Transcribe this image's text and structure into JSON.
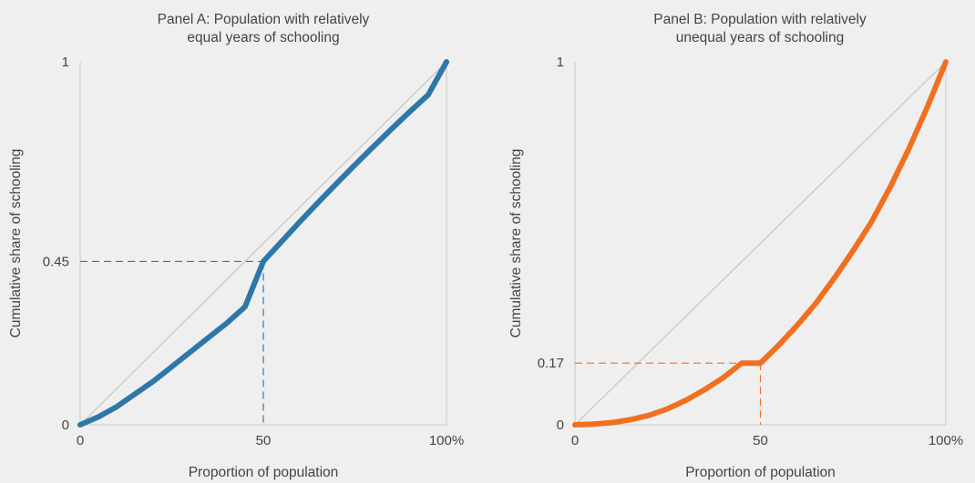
{
  "colors": {
    "background": "#efefef",
    "axis": "#c8c8c8",
    "equality_line": "#bdbdbd",
    "text": "#444444",
    "panel_a_series": "#2e78a8",
    "panel_b_series": "#f07020"
  },
  "chart_data": [
    {
      "type": "line",
      "title": [
        "Panel A: Population with relatively",
        "equal years of schooling"
      ],
      "xlabel": "Proportion of population",
      "ylabel": "Cumulative share of schooling",
      "xlim": [
        0,
        100
      ],
      "ylim": [
        0,
        1
      ],
      "xticks": [
        {
          "value": 0,
          "label": "0"
        },
        {
          "value": 50,
          "label": "50"
        },
        {
          "value": 100,
          "label": "100%"
        }
      ],
      "yticks": [
        {
          "value": 0,
          "label": "0"
        },
        {
          "value": 0.45,
          "label": "0.45"
        },
        {
          "value": 1,
          "label": "1"
        }
      ],
      "grid": false,
      "equality_line": {
        "x": [
          0,
          100
        ],
        "y": [
          0,
          1
        ]
      },
      "series": [
        {
          "color": "#2e78a8",
          "x": [
            0,
            5,
            10,
            15,
            20,
            25,
            30,
            35,
            40,
            45,
            50,
            55,
            60,
            65,
            70,
            75,
            80,
            85,
            90,
            95,
            100
          ],
          "y": [
            0,
            0.022,
            0.05,
            0.085,
            0.12,
            0.16,
            0.2,
            0.24,
            0.28,
            0.325,
            0.45,
            0.505,
            0.56,
            0.613,
            0.665,
            0.716,
            0.766,
            0.815,
            0.863,
            0.909,
            1
          ]
        }
      ],
      "reference": {
        "x": 50,
        "y": 0.45,
        "style": "dashed",
        "color": "#2e78a8"
      }
    },
    {
      "type": "line",
      "title": [
        "Panel B: Population with relatively",
        "unequal years of schooling"
      ],
      "xlabel": "Proportion of population",
      "ylabel": "Cumulative share of schooling",
      "xlim": [
        0,
        100
      ],
      "ylim": [
        0,
        1
      ],
      "xticks": [
        {
          "value": 0,
          "label": "0"
        },
        {
          "value": 50,
          "label": "50"
        },
        {
          "value": 100,
          "label": "100%"
        }
      ],
      "yticks": [
        {
          "value": 0,
          "label": "0"
        },
        {
          "value": 0.17,
          "label": "0.17"
        },
        {
          "value": 1,
          "label": "1"
        }
      ],
      "grid": false,
      "equality_line": {
        "x": [
          0,
          100
        ],
        "y": [
          0,
          1
        ]
      },
      "series": [
        {
          "color": "#f07020",
          "x": [
            0,
            5,
            10,
            15,
            20,
            25,
            30,
            35,
            40,
            45,
            50,
            55,
            60,
            65,
            70,
            75,
            80,
            85,
            90,
            95,
            100
          ],
          "y": [
            0,
            0.002,
            0.006,
            0.014,
            0.026,
            0.044,
            0.068,
            0.097,
            0.13,
            0.17,
            0.17,
            0.22,
            0.275,
            0.335,
            0.405,
            0.48,
            0.56,
            0.655,
            0.76,
            0.875,
            1
          ]
        }
      ],
      "reference": {
        "x": 50,
        "y": 0.17,
        "style": "dashed",
        "color": "#f07020"
      }
    }
  ]
}
